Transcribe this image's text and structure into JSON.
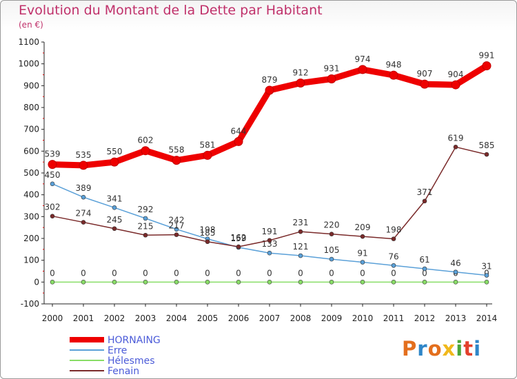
{
  "title": "Evolution du Montant de la Dette par Habitant",
  "subtitle": "(en €)",
  "brand": {
    "letters": [
      "P",
      "r",
      "o",
      "x",
      "i",
      "t",
      "i"
    ],
    "colors": [
      "#e36f1e",
      "#2f86c8",
      "#e36f1e",
      "#f0b81c",
      "#4aa63a",
      "#e3402c",
      "#2f86c8"
    ]
  },
  "chart_data": {
    "type": "line",
    "x": [
      2000,
      2001,
      2002,
      2003,
      2004,
      2005,
      2006,
      2007,
      2008,
      2009,
      2010,
      2011,
      2012,
      2013,
      2014
    ],
    "ylim": [
      -100,
      1100
    ],
    "yticks": [
      -100,
      0,
      100,
      200,
      300,
      400,
      500,
      600,
      700,
      800,
      900,
      1000,
      1100
    ],
    "grid": false,
    "legend": "bottom-left",
    "series": [
      {
        "name": "HORNAING",
        "color": "#ee0000",
        "values": [
          539,
          535,
          550,
          602,
          558,
          581,
          644,
          879,
          912,
          931,
          974,
          948,
          907,
          904,
          991
        ]
      },
      {
        "name": "Erre",
        "color": "#5aa0d8",
        "values": [
          450,
          389,
          341,
          292,
          242,
          198,
          159,
          133,
          121,
          105,
          91,
          76,
          61,
          46,
          31
        ]
      },
      {
        "name": "Hélesmes",
        "color": "#88dd66",
        "values": [
          0,
          0,
          0,
          0,
          0,
          0,
          0,
          0,
          0,
          0,
          0,
          0,
          0,
          0,
          0
        ]
      },
      {
        "name": "Fenain",
        "color": "#7a2a2a",
        "values": [
          302,
          274,
          245,
          215,
          217,
          185,
          162,
          191,
          231,
          220,
          209,
          198,
          371,
          619,
          585
        ]
      }
    ]
  }
}
